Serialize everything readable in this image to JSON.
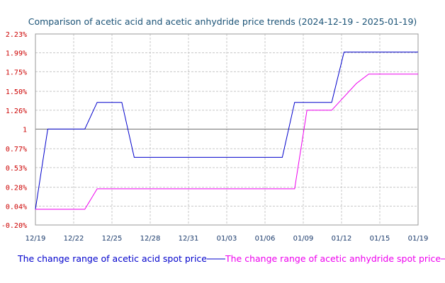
{
  "chart_data": {
    "type": "line",
    "title": "Comparison of acetic acid and acetic anhydride price trends (2024-12-19 - 2025-01-19)",
    "x_ticks": [
      "12/19",
      "12/22",
      "12/25",
      "12/28",
      "12/31",
      "01/03",
      "01/06",
      "01/09",
      "01/12",
      "01/15",
      "01/19"
    ],
    "y_ticks": [
      {
        "value": 2.23,
        "label": "2.23%"
      },
      {
        "value": 1.99,
        "label": "1.99%"
      },
      {
        "value": 1.75,
        "label": "1.75%"
      },
      {
        "value": 1.5,
        "label": "1.50%"
      },
      {
        "value": 1.26,
        "label": "1.26%"
      },
      {
        "value": 1.02,
        "label": "1"
      },
      {
        "value": 0.77,
        "label": "0.77%"
      },
      {
        "value": 0.53,
        "label": "0.53%"
      },
      {
        "value": 0.28,
        "label": "0.28%"
      },
      {
        "value": 0.04,
        "label": "0.04%"
      },
      {
        "value": -0.2,
        "label": "-0.20%"
      }
    ],
    "ylim": [
      -0.2,
      2.23
    ],
    "xlim": [
      0,
      31
    ],
    "baseline": 1.02,
    "grid": true,
    "legend_position": "bottom",
    "series": [
      {
        "name": "The change range of acetic acid spot price",
        "color": "#0000cc",
        "x": [
          0,
          1,
          4,
          5,
          7,
          8,
          20,
          21,
          24,
          25,
          31
        ],
        "y": [
          0.0,
          1.02,
          1.02,
          1.36,
          1.36,
          0.66,
          0.66,
          1.36,
          1.36,
          2.0,
          2.0
        ]
      },
      {
        "name": "The change range of acetic anhydride spot price",
        "color": "#ee00ee",
        "x": [
          0,
          4,
          5,
          21,
          22,
          24,
          26,
          27,
          31
        ],
        "y": [
          0.0,
          0.0,
          0.26,
          0.26,
          1.26,
          1.26,
          1.6,
          1.72,
          1.72
        ]
      }
    ]
  }
}
